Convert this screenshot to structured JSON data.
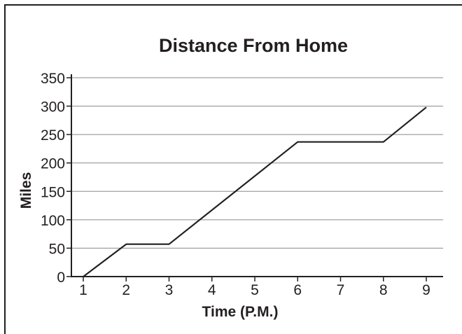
{
  "chart_data": {
    "type": "line",
    "title": "Distance From Home",
    "xlabel": "Time (P.M.)",
    "ylabel": "Miles",
    "x": [
      1,
      2,
      3,
      6,
      8,
      9
    ],
    "series": [
      {
        "values": [
          0,
          57,
          57,
          237,
          237,
          298
        ]
      }
    ],
    "xticks": [
      "1",
      "2",
      "3",
      "4",
      "5",
      "6",
      "7",
      "8",
      "9"
    ],
    "yticks": [
      "0",
      "50",
      "100",
      "150",
      "200",
      "250",
      "300",
      "350"
    ],
    "xlim": [
      1,
      9
    ],
    "ylim": [
      0,
      350
    ],
    "grid": true,
    "colors": {
      "line": "#231f20",
      "grid": "#8a8a8a",
      "frame": "#231f20"
    }
  }
}
